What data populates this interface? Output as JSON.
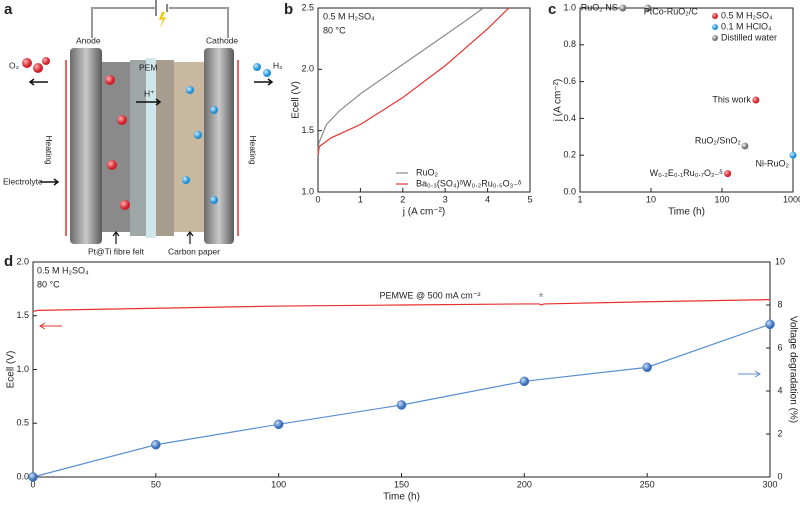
{
  "panel_labels": [
    "a",
    "b",
    "c",
    "d"
  ],
  "diagram": {
    "anode": "Anode",
    "cathode": "Cathode",
    "pem": "PEM",
    "proton": "H⁺",
    "o2": "O₂",
    "h2": "H₂",
    "heating_left": "Heating",
    "heating_right": "Heating",
    "electrolyte": "Electrolyte",
    "felt": "Pt@Ti fibre felt",
    "carbon": "Carbon paper"
  },
  "chart_data": [
    {
      "type": "line",
      "x_label": "j (A cm⁻²)",
      "y_label": "Ecell (V)",
      "annotations": [
        "0.5 M H₂SO₄",
        "80 °C"
      ],
      "xlim": [
        0,
        5
      ],
      "xticks": [
        0,
        1,
        2,
        3,
        4,
        5
      ],
      "ylim": [
        1,
        2.5
      ],
      "yticks": [
        {
          "value": 1,
          "label": "1.0"
        },
        {
          "value": 1.5,
          "label": "1.5"
        },
        {
          "value": 2,
          "label": "2.0"
        },
        {
          "value": 2.5,
          "label": "2.5"
        }
      ],
      "legend": "lower right",
      "series": [
        {
          "name": "RuO₂",
          "color": "#8c8c8c",
          "x": [
            0,
            0.02,
            0.2,
            0.5,
            1,
            1.5,
            2,
            2.5,
            3,
            3.5,
            3.9
          ],
          "values": [
            1.3,
            1.4,
            1.55,
            1.66,
            1.8,
            1.92,
            2.04,
            2.16,
            2.28,
            2.4,
            2.5
          ]
        },
        {
          "name": "Ba₀.₃(SO₄)ᵟW₀.₂Ru₀.₅O₃₋ᵟ",
          "color": "#e8302e",
          "x": [
            0,
            0.03,
            0.3,
            1,
            2,
            3,
            4,
            4.5
          ],
          "values": [
            1.3,
            1.37,
            1.44,
            1.55,
            1.77,
            2.03,
            2.33,
            2.5
          ]
        }
      ]
    },
    {
      "type": "scatter",
      "x_label": "Time (h)",
      "y_label": "j (A cm⁻²)",
      "xlog": true,
      "xlim": [
        1,
        1000
      ],
      "xticks": [
        1,
        10,
        100,
        1000
      ],
      "ylim": [
        0,
        1
      ],
      "yticks": [
        {
          "value": 0,
          "label": "0.0"
        },
        0.2,
        0.4,
        0.6,
        0.8,
        {
          "value": 1,
          "label": "1.0"
        }
      ],
      "legend": "upper right",
      "series": [
        {
          "name": "0.5 M H₂SO₄",
          "color": "#f0595a",
          "x": [
            300,
            120
          ],
          "values": [
            0.5,
            0.1
          ],
          "labels": [
            "This work",
            "W₀.₂E₀.₁Ru₀.₇O₂₋ᵟ"
          ]
        },
        {
          "name": "0.1 M HClO₄",
          "color": "#4a9ee0",
          "x": [
            1000
          ],
          "values": [
            0.2
          ],
          "labels": [
            "Ni-RuO₂"
          ]
        },
        {
          "name": "Distilled water",
          "color": "#8f8f8f",
          "x": [
            4,
            9,
            210
          ],
          "values": [
            1,
            1,
            0.25
          ],
          "labels": [
            "RuO₂ NS",
            "PtCo-RuO₂/C",
            "RuO₂/SnO₂"
          ]
        }
      ]
    },
    {
      "type": "line",
      "x_label": "Time (h)",
      "y_label": "Ecell (V)",
      "y2_label": "Voltage degradation (%)",
      "annotations": [
        "0.5 M H₂SO₄",
        "80 °C",
        "PEMWE @ 500 mA cm⁻²",
        "*"
      ],
      "xlim": [
        0,
        300
      ],
      "xticks": [
        0,
        50,
        100,
        150,
        200,
        250,
        300
      ],
      "ylim": [
        0,
        2
      ],
      "yticks": [
        {
          "value": 0,
          "label": "0.0"
        },
        0.5,
        {
          "value": 1,
          "label": "1.0"
        },
        1.5,
        {
          "value": 2,
          "label": "2.0"
        }
      ],
      "y2lim": [
        0,
        10
      ],
      "y2ticks": [
        0,
        2,
        4,
        6,
        8,
        10
      ],
      "series": [
        {
          "color": "#e8302e",
          "x": [
            0,
            2,
            50,
            100,
            150,
            200,
            206,
            207,
            208,
            250,
            300
          ],
          "values": [
            1.54,
            1.55,
            1.57,
            1.59,
            1.6,
            1.61,
            1.61,
            1.6,
            1.61,
            1.63,
            1.65
          ]
        },
        {
          "color": "#5b8fd0",
          "axis": "y2",
          "markers": true,
          "x": [
            0,
            50,
            100,
            150,
            200,
            250,
            300
          ],
          "values": [
            0,
            1.5,
            2.45,
            3.35,
            4.45,
            5.1,
            7.1
          ]
        }
      ]
    }
  ]
}
